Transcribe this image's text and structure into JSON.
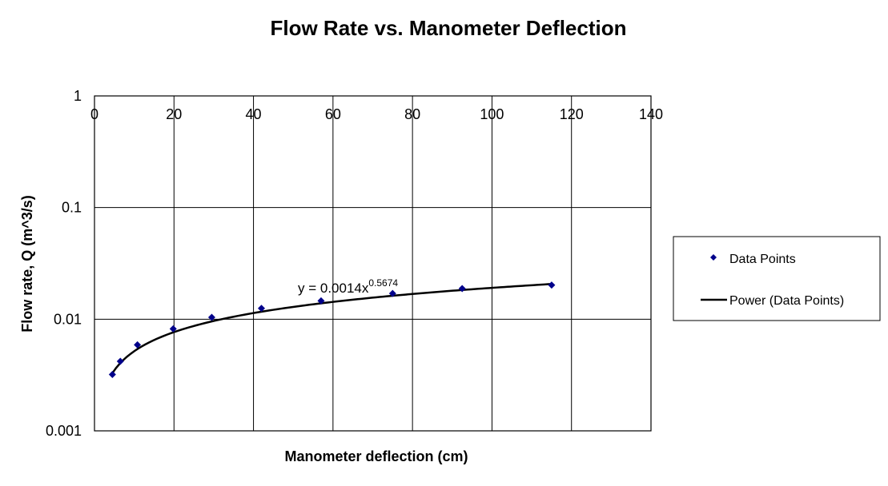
{
  "chart_data": {
    "type": "scatter",
    "title": "Flow Rate vs. Manometer Deflection",
    "xlabel": "Manometer deflection (cm)",
    "ylabel": "Flow rate, Q (m^3/s)",
    "xlim": [
      0,
      140
    ],
    "ylim": [
      0.001,
      1
    ],
    "yscale": "log",
    "x_ticks": [
      "0",
      "20",
      "40",
      "60",
      "80",
      "100",
      "120",
      "140"
    ],
    "y_ticks": [
      "1",
      "0.1",
      "0.01",
      "0.001"
    ],
    "grid": true,
    "x_axis_position": "top",
    "legend_position": "right",
    "series": [
      {
        "name": "Data Points",
        "kind": "scatter",
        "marker": "diamond",
        "color": "#00008B",
        "x": [
          4.5,
          6.5,
          10.8,
          19.8,
          29.5,
          42,
          57,
          75,
          92.5,
          115
        ],
        "y": [
          0.0032,
          0.0042,
          0.0059,
          0.0082,
          0.0104,
          0.0125,
          0.0146,
          0.017,
          0.0188,
          0.0202
        ]
      },
      {
        "name": "Power (Data Points)",
        "kind": "trendline",
        "color": "#000000",
        "coef": 0.0014,
        "exponent": 0.5674,
        "x_range": [
          4.5,
          115
        ]
      }
    ],
    "trendline_equation": {
      "prefix": "y = 0.0014x",
      "exponent": "0.5674"
    }
  }
}
